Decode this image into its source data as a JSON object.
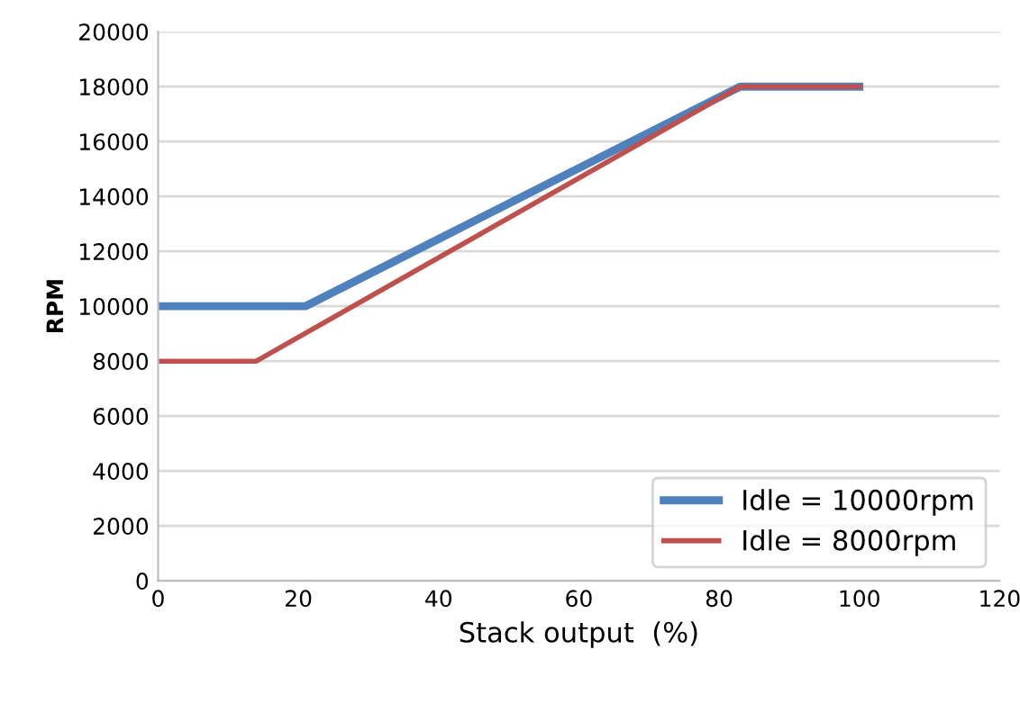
{
  "chart_data": {
    "type": "line",
    "xlabel": "Stack output  (%)",
    "ylabel": "RPM",
    "xlim": [
      0,
      120
    ],
    "xticks": [
      0,
      20,
      40,
      60,
      80,
      100,
      120
    ],
    "ylim": [
      0,
      20000
    ],
    "yticks": [
      0,
      2000,
      4000,
      6000,
      8000,
      10000,
      12000,
      14000,
      16000,
      18000,
      20000
    ],
    "grid": "y",
    "legend": "bottom right",
    "marker": "none",
    "line_style": "solid",
    "series": [
      {
        "name": "Idle = 10000rpm",
        "color": "#4f81bd",
        "x": [
          0,
          21,
          83,
          100
        ],
        "values": [
          10000,
          10000,
          18000,
          18000
        ]
      },
      {
        "name": "Idle = 8000rpm",
        "color": "#c0504d",
        "x": [
          0,
          14,
          83,
          100
        ],
        "values": [
          8000,
          8000,
          18000,
          18000
        ]
      }
    ]
  }
}
